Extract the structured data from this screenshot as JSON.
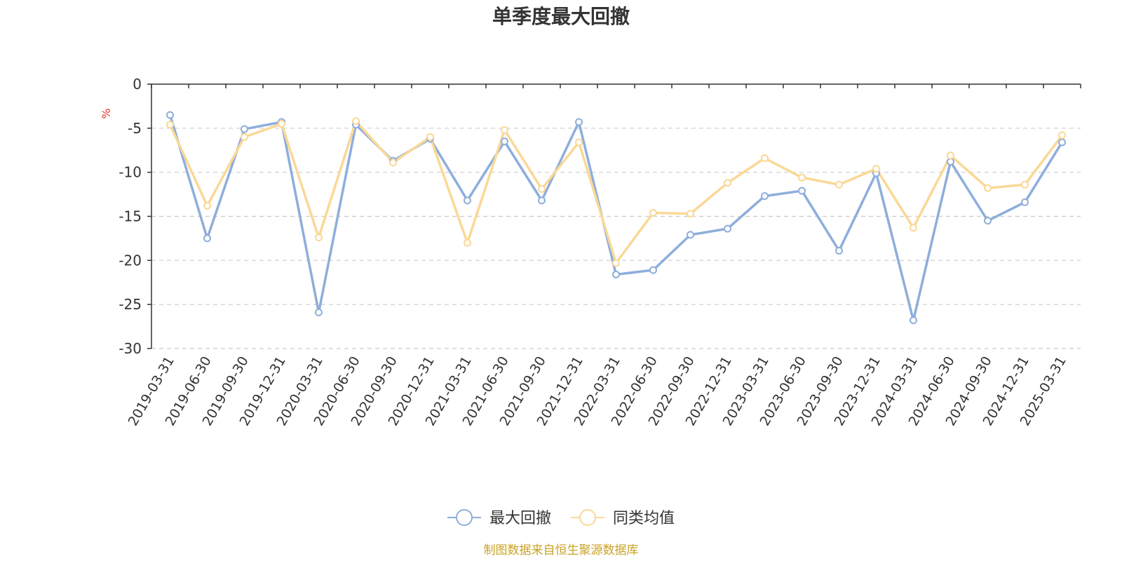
{
  "chart_data": {
    "type": "line",
    "title": "单季度最大回撤",
    "ylabel": "%",
    "ylim": [
      -30,
      0
    ],
    "yticks": [
      0,
      -5,
      -10,
      -15,
      -20,
      -25,
      -30
    ],
    "grid": true,
    "legend_position": "bottom-center",
    "categories": [
      "2019-03-31",
      "2019-06-30",
      "2019-09-30",
      "2019-12-31",
      "2020-03-31",
      "2020-06-30",
      "2020-09-30",
      "2020-12-31",
      "2021-03-31",
      "2021-06-30",
      "2021-09-30",
      "2021-12-31",
      "2022-03-31",
      "2022-06-30",
      "2022-09-30",
      "2022-12-31",
      "2023-03-31",
      "2023-06-30",
      "2023-09-30",
      "2023-12-31",
      "2024-03-31",
      "2024-06-30",
      "2024-09-30",
      "2024-12-31",
      "2025-03-31"
    ],
    "series": [
      {
        "name": "最大回撤",
        "color": "#8eaedb",
        "values": [
          -3.5,
          -17.5,
          -5.1,
          -4.3,
          -25.9,
          -4.6,
          -8.7,
          -6.2,
          -13.2,
          -6.5,
          -13.2,
          -4.3,
          -21.6,
          -21.1,
          -17.1,
          -16.4,
          -12.7,
          -12.1,
          -18.9,
          -10.1,
          -26.8,
          -8.8,
          -15.5,
          -13.4,
          -6.6
        ]
      },
      {
        "name": "同类均值",
        "color": "#fad896",
        "values": [
          -4.6,
          -13.8,
          -6.0,
          -4.5,
          -17.4,
          -4.2,
          -8.9,
          -6.0,
          -18.0,
          -5.2,
          -11.9,
          -6.6,
          -20.3,
          -14.6,
          -14.7,
          -11.2,
          -8.4,
          -10.6,
          -11.4,
          -9.6,
          -16.3,
          -8.1,
          -11.8,
          -11.4,
          -5.8
        ]
      }
    ]
  },
  "source_note": "制图数据来自恒生聚源数据库"
}
